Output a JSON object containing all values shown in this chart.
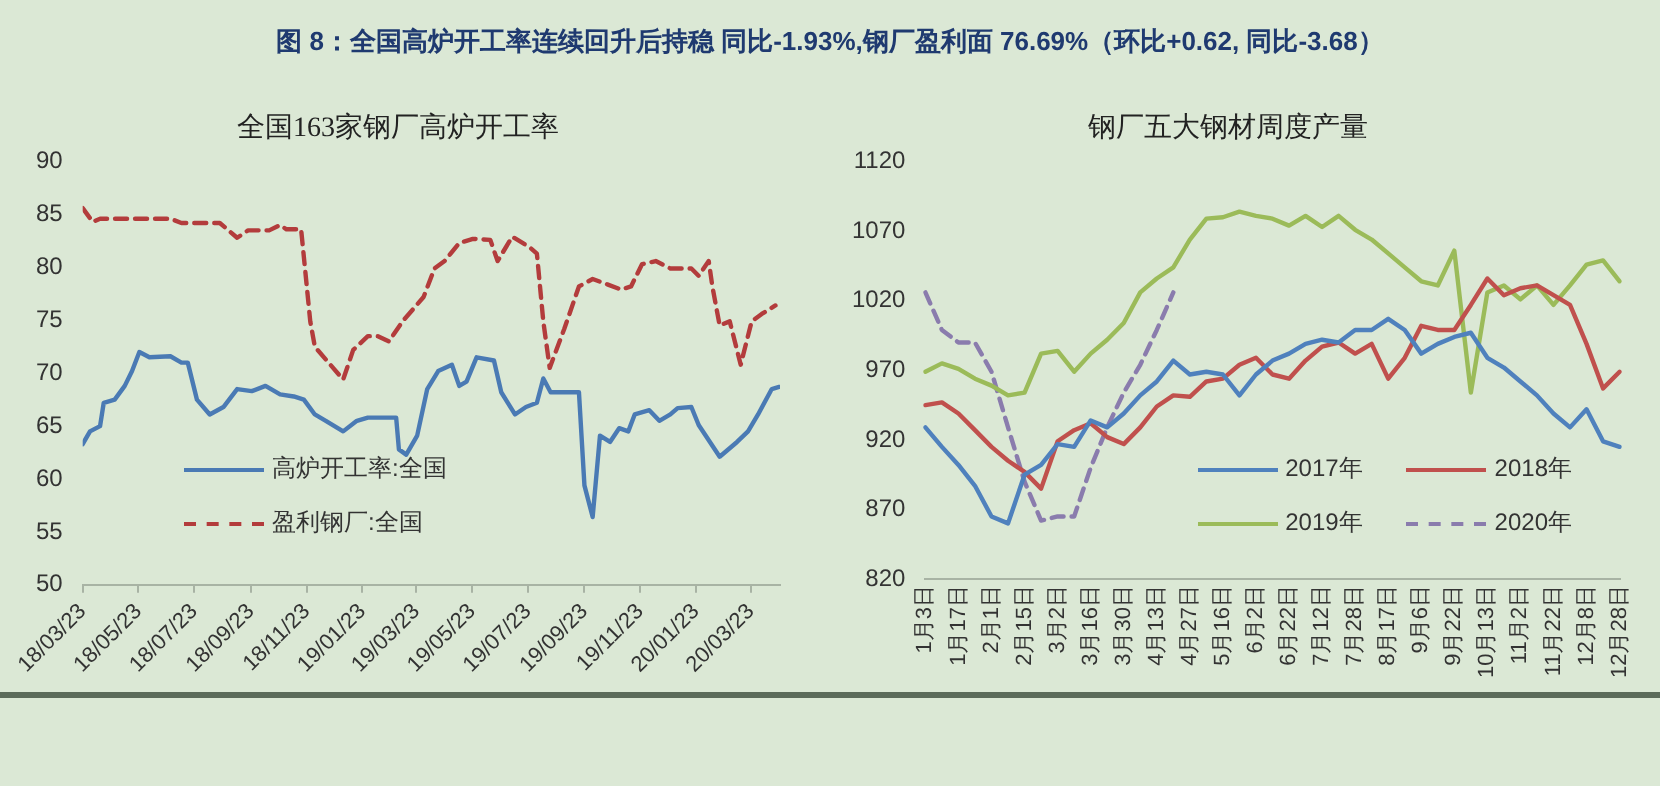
{
  "chart_data": [
    {
      "type": "line",
      "title": "全国163家钢厂高炉开工率",
      "annotations": [
        "图 8：全国高炉开工率连续回升后持稳 同比-1.93%,钢厂盈利面 76.69%（环比+0.62, 同比-3.68）"
      ],
      "xlim": [
        "2018-03-23",
        "2020-04-24"
      ],
      "xticks": [
        {
          "value": "2018-03-23",
          "label": "18/03/23"
        },
        {
          "value": "2018-05-23",
          "label": "18/05/23"
        },
        {
          "value": "2018-07-23",
          "label": "18/07/23"
        },
        {
          "value": "2018-09-23",
          "label": "18/09/23"
        },
        {
          "value": "2018-11-23",
          "label": "18/11/23"
        },
        {
          "value": "2019-01-23",
          "label": "19/01/23"
        },
        {
          "value": "2019-03-23",
          "label": "19/03/23"
        },
        {
          "value": "2019-05-23",
          "label": "19/05/23"
        },
        {
          "value": "2019-07-23",
          "label": "19/07/23"
        },
        {
          "value": "2019-09-23",
          "label": "19/09/23"
        },
        {
          "value": "2019-11-23",
          "label": "19/11/23"
        },
        {
          "value": "2020-01-23",
          "label": "20/01/23"
        },
        {
          "value": "2020-03-23",
          "label": "20/03/23"
        }
      ],
      "ylim": [
        50,
        90
      ],
      "yticks": [
        50,
        55,
        60,
        65,
        70,
        75,
        80,
        85,
        90
      ],
      "grid": false,
      "legend": "bottom left",
      "marker": "none",
      "series": [
        {
          "name": "高炉开工率:全国",
          "color": "#4a7ab4",
          "line_style": "solid",
          "x": [
            "2018-03-23",
            "2018-03-31",
            "2018-04-11",
            "2018-04-15",
            "2018-04-27",
            "2018-05-08",
            "2018-05-16",
            "2018-05-24",
            "2018-06-04",
            "2018-06-27",
            "2018-07-09",
            "2018-07-16",
            "2018-07-26",
            "2018-08-09",
            "2018-08-24",
            "2018-09-08",
            "2018-09-24",
            "2018-10-09",
            "2018-10-25",
            "2018-11-09",
            "2018-11-20",
            "2018-12-02",
            "2018-12-14",
            "2019-01-02",
            "2019-01-17",
            "2019-01-29",
            "2019-03-01",
            "2019-03-04",
            "2019-03-12",
            "2019-03-24",
            "2019-04-04",
            "2019-04-16",
            "2019-05-01",
            "2019-05-09",
            "2019-05-17",
            "2019-05-28",
            "2019-06-16",
            "2019-06-24",
            "2019-07-09",
            "2019-07-21",
            "2019-08-02",
            "2019-08-09",
            "2019-08-17",
            "2019-09-17",
            "2019-09-23",
            "2019-10-02",
            "2019-10-10",
            "2019-10-21",
            "2019-10-31",
            "2019-11-10",
            "2019-11-17",
            "2019-12-03",
            "2019-12-14",
            "2019-12-26",
            "2020-01-03",
            "2020-01-18",
            "2020-01-26",
            "2020-02-18",
            "2020-03-08",
            "2020-03-20",
            "2020-03-31",
            "2020-04-15",
            "2020-04-23"
          ],
          "values": [
            63.3,
            64.5,
            65,
            67.2,
            67.5,
            68.8,
            70.2,
            72,
            71.5,
            71.6,
            71,
            71,
            67.5,
            66.1,
            66.8,
            68.5,
            68.3,
            68.8,
            68,
            67.8,
            67.5,
            66.1,
            65.5,
            64.5,
            65.5,
            65.8,
            65.8,
            62.8,
            62.3,
            64.1,
            68.5,
            70.2,
            70.8,
            68.8,
            69.2,
            71.5,
            71.2,
            68.2,
            66.1,
            66.8,
            67.2,
            69.5,
            68.2,
            68.2,
            59.4,
            56.4,
            64.1,
            63.5,
            64.8,
            64.5,
            66.1,
            66.5,
            65.5,
            66.1,
            66.7,
            66.8,
            65.1,
            62.1,
            63.5,
            64.5,
            66.1,
            68.5,
            68.7
          ]
        },
        {
          "name": "盈利钢厂:全国",
          "color": "#b33c3c",
          "line_style": "dashed",
          "x": [
            "2018-03-23",
            "2018-04-03",
            "2018-04-11",
            "2018-06-27",
            "2018-07-09",
            "2018-08-20",
            "2018-09-08",
            "2018-09-20",
            "2018-10-13",
            "2018-10-25",
            "2018-11-01",
            "2018-11-17",
            "2018-11-27",
            "2018-12-02",
            "2019-01-02",
            "2019-01-13",
            "2019-01-29",
            "2019-02-09",
            "2019-02-21",
            "2019-03-08",
            "2019-03-31",
            "2019-04-12",
            "2019-04-23",
            "2019-05-09",
            "2019-05-24",
            "2019-06-12",
            "2019-06-20",
            "2019-07-06",
            "2019-07-25",
            "2019-08-02",
            "2019-08-09",
            "2019-08-16",
            "2019-09-01",
            "2019-09-17",
            "2019-10-02",
            "2019-10-18",
            "2019-11-02",
            "2019-11-13",
            "2019-11-25",
            "2019-12-10",
            "2019-12-26",
            "2020-01-18",
            "2020-01-26",
            "2020-02-06",
            "2020-02-10",
            "2020-02-18",
            "2020-02-29",
            "2020-03-12",
            "2020-03-24",
            "2020-04-04",
            "2020-04-19"
          ],
          "values": [
            85.6,
            84.3,
            84.6,
            84.6,
            84.2,
            84.2,
            82.8,
            83.5,
            83.5,
            84,
            83.6,
            83.6,
            74.9,
            72.5,
            69.4,
            72.2,
            73.5,
            73.5,
            73,
            74.9,
            77.2,
            79.9,
            80.6,
            82.3,
            82.7,
            82.6,
            80.6,
            82.9,
            81.9,
            81.3,
            74.9,
            70.5,
            74.2,
            78.2,
            78.9,
            78.4,
            77.9,
            78.2,
            80.3,
            80.6,
            79.9,
            79.9,
            79.2,
            80.6,
            78.2,
            74.5,
            74.9,
            70.8,
            74.9,
            75.6,
            76.4
          ]
        }
      ]
    },
    {
      "type": "line",
      "title": "钢厂五大钢材周度产量",
      "categories": [
        "1月3日",
        null,
        "1月17日",
        null,
        "2月1日",
        null,
        "2月15日",
        null,
        "3月2日",
        null,
        "3月16日",
        null,
        "3月30日",
        null,
        "4月13日",
        null,
        "4月27日",
        null,
        "5月16日",
        null,
        "6月2日",
        null,
        "6月22日",
        null,
        "7月12日",
        null,
        "7月28日",
        null,
        "8月17日",
        null,
        "9月6日",
        null,
        "9月22日",
        null,
        "10月13日",
        null,
        "11月2日",
        null,
        "11月22日",
        null,
        "12月8日",
        null,
        "12月28日"
      ],
      "ylim": [
        820,
        1120
      ],
      "yticks": [
        820,
        870,
        920,
        970,
        1020,
        1070,
        1120
      ],
      "grid": false,
      "legend": "bottom right",
      "marker": "none",
      "series": [
        {
          "name": "2017年",
          "color": "#4f81bd",
          "line_style": "solid",
          "values": [
            929,
            915,
            902,
            887,
            865,
            860,
            895,
            902,
            917,
            915,
            934,
            929,
            939,
            952,
            962,
            977,
            967,
            969,
            967,
            952,
            967,
            977,
            982,
            989,
            992,
            990,
            999,
            999,
            1007,
            999,
            982,
            989,
            994,
            997,
            979,
            972,
            962,
            952,
            939,
            929,
            942,
            919,
            915
          ]
        },
        {
          "name": "2018年",
          "color": "#c0504d",
          "line_style": "solid",
          "values": [
            945,
            947,
            939,
            927,
            915,
            905,
            897,
            885,
            919,
            927,
            932,
            922,
            917,
            929,
            944,
            952,
            951,
            962,
            964,
            974,
            979,
            967,
            964,
            977,
            987,
            990,
            982,
            989,
            964,
            979,
            1002,
            999,
            999,
            1017,
            1036,
            1024,
            1029,
            1031,
            1024,
            1017,
            989,
            957,
            969
          ]
        },
        {
          "name": "2019年",
          "color": "#9bbb59",
          "line_style": "solid",
          "values": [
            969,
            975,
            971,
            964,
            959,
            952,
            954,
            982,
            984,
            969,
            982,
            992,
            1004,
            1026,
            1036,
            1044,
            1064,
            1079,
            1080,
            1084,
            1081,
            1079,
            1074,
            1081,
            1073,
            1081,
            1071,
            1064,
            1054,
            1044,
            1034,
            1031,
            1056,
            954,
            1026,
            1031,
            1021,
            1031,
            1017,
            1031,
            1046,
            1049,
            1034
          ]
        },
        {
          "name": "2020年",
          "color": "#8a7cad",
          "line_style": "dashed",
          "values": [
            1026,
            999,
            990,
            990,
            969,
            929,
            890,
            862,
            865,
            865,
            900,
            929,
            954,
            974,
            999,
            1026,
            null,
            null,
            null,
            null,
            null,
            null,
            null,
            null,
            null,
            null,
            null,
            null,
            null,
            null,
            null,
            null,
            null,
            null,
            null,
            null,
            null,
            null,
            null,
            null,
            null,
            null,
            null
          ]
        }
      ]
    }
  ]
}
